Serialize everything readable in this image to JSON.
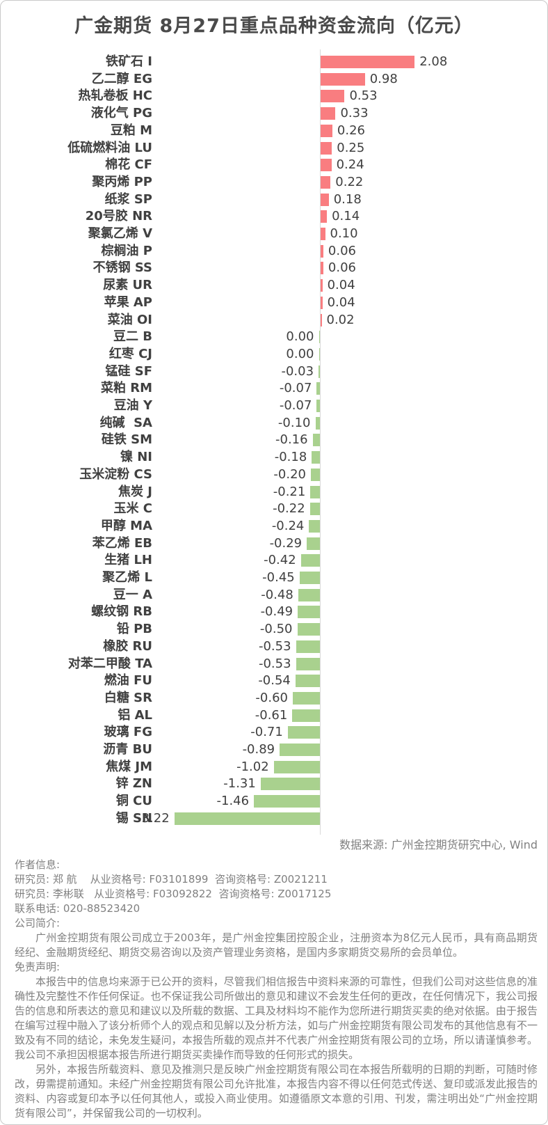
{
  "chart_data": {
    "type": "bar",
    "orientation": "horizontal",
    "title": "广金期货 8月27日重点品种资金流向（亿元）",
    "unit": "亿元",
    "value_label_decimals": 2,
    "positive_color": "#f97d80",
    "negative_color": "#a9d18e",
    "axis_color": "#d9d9d9",
    "xlim": [
      -3.5,
      2.3
    ],
    "grid": false,
    "legend": "none",
    "categories": [
      "铁矿石 I",
      "乙二醇 EG",
      "热轧卷板 HC",
      "液化气 PG",
      "豆粕 M",
      "低硫燃料油 LU",
      "棉花 CF",
      "聚丙烯 PP",
      "纸浆 SP",
      "20号胶 NR",
      "聚氯乙烯 V",
      "棕榈油 P",
      "不锈钢 SS",
      "尿素 UR",
      "苹果 AP",
      "菜油 OI",
      "豆二 B",
      "红枣 CJ",
      "锰硅 SF",
      "菜粕 RM",
      "豆油 Y",
      "纯碱  SA",
      "硅铁 SM",
      "镍 NI",
      "玉米淀粉 CS",
      "焦炭 J",
      "玉米 C",
      "甲醇 MA",
      "苯乙烯 EB",
      "生猪 LH",
      "聚乙烯 L",
      "豆一 A",
      "螺纹钢 RB",
      "铅 PB",
      "橡胶 RU",
      "对苯二甲酸 TA",
      "燃油 FU",
      "白糖 SR",
      "铝 AL",
      "玻璃 FG",
      "沥青 BU",
      "焦煤 JM",
      "锌 ZN",
      "铜 CU",
      "锡 SN"
    ],
    "values": [
      2.08,
      0.98,
      0.53,
      0.33,
      0.26,
      0.25,
      0.24,
      0.22,
      0.18,
      0.14,
      0.1,
      0.06,
      0.06,
      0.04,
      0.04,
      0.02,
      0.0,
      0.0,
      -0.03,
      -0.07,
      -0.07,
      -0.1,
      -0.16,
      -0.18,
      -0.2,
      -0.21,
      -0.22,
      -0.24,
      -0.29,
      -0.42,
      -0.45,
      -0.48,
      -0.49,
      -0.5,
      -0.53,
      -0.53,
      -0.54,
      -0.6,
      -0.61,
      -0.71,
      -0.89,
      -1.02,
      -1.31,
      -1.46,
      -3.22
    ]
  },
  "footer": {
    "source": "数据来源: 广州金控期货研究中心, Wind",
    "author_header": "作者信息:",
    "authors": [
      "研究员: 郑 航    从业资格号: F03101899  咨询资格号: Z0021211",
      "研究员: 李彬联   从业资格号: F03092822  咨询资格号: Z0017125"
    ],
    "phone": "联系电话: 020-88523420",
    "company_header": "公司简介:",
    "company_intro": "广州金控期货有限公司成立于2003年，是广州金控集团控股企业，注册资本为8亿元人民币，具有商品期货经纪、金融期货经纪、期货交易咨询以及资产管理业务资格，是国内多家期货交易所的会员单位。",
    "disclaimer_header": "免责声明:",
    "disclaimer_paragraphs": [
      "本报告中的信息均来源于已公开的资料，尽管我们相信报告中资料来源的可靠性，但我们公司对这些信息的准确性及完整性不作任何保证。也不保证我公司所做出的意见和建议不会发生任何的更改，在任何情况下，我公司报告的信息和所表达的意见和建议以及所载的数据、工具及材料均不能作为您所进行期货买卖的绝对依据。由于报告在编写过程中融入了该分析师个人的观点和见解以及分析方法，如与广州金控期货有限公司发布的其他信息有不一致及有不同的结论，未免发生疑问，本报告所载的观点并不代表广州金控期货有限公司的立场，所以请谨慎参考。我公司不承担因根据本报告所进行期货买卖操作而导致的任何形式的损失。",
      "另外，本报告所载资料、意见及推测只是反映广州金控期货有限公司在本报告所载明的日期的判断，可随时修改，毋需提前通知。未经广州金控期货有限公司允许批准，本报告内容不得以任何范式传送、复印或派发此报告的资料、内容或复印本予以任何其他人，或投入商业使用。如遵循原文本意的引用、刊发，需注明出处“广州金控期货有限公司”，并保留我公司的一切权利。"
    ]
  }
}
